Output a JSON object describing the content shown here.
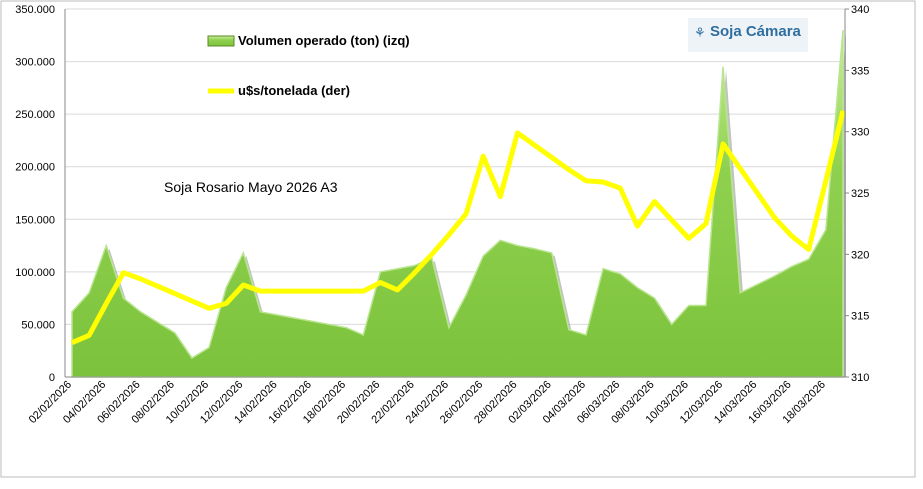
{
  "chart_data": {
    "type": "area_line",
    "annotation": "Soja Rosario Mayo 2026 A3",
    "logo": "Soja Cámara",
    "categories": [
      "02/02/2026",
      null,
      "04/02/2026",
      null,
      "06/02/2026",
      null,
      "08/02/2026",
      null,
      "10/02/2026",
      null,
      "12/02/2026",
      null,
      "14/02/2026",
      null,
      "16/02/2026",
      null,
      "18/02/2026",
      null,
      "20/02/2026",
      null,
      "22/02/2026",
      null,
      "24/02/2026",
      null,
      "26/02/2026",
      null,
      "28/02/2026",
      null,
      "02/03/2026",
      null,
      "04/03/2026",
      null,
      "06/03/2026",
      null,
      "08/03/2026",
      null,
      "10/03/2026",
      null,
      "12/03/2026",
      null,
      "14/03/2026",
      null,
      "16/03/2026",
      null,
      "18/03/2026",
      null
    ],
    "series": [
      {
        "name": "Volumen operado (ton) (izq)",
        "color": "#8fd14f",
        "axis": "y",
        "values": [
          62000,
          80000,
          125000,
          75000,
          62000,
          52000,
          42000,
          18000,
          28000,
          85000,
          118000,
          62000,
          59000,
          56000,
          53000,
          50000,
          47000,
          40000,
          100000,
          103000,
          106000,
          113000,
          47000,
          78000,
          115000,
          130000,
          125000,
          122000,
          118000,
          45000,
          40000,
          103000,
          98000,
          85000,
          75000,
          50000,
          68000,
          68000,
          295000,
          80000,
          88000,
          96000,
          105000,
          112000,
          140000,
          330000
        ]
      },
      {
        "name": "u$s/tonelada (der)",
        "color": "#ffff00",
        "axis": "y2",
        "values": [
          312.8,
          313.4,
          316,
          318.5,
          318,
          317.4,
          316.8,
          316.2,
          315.6,
          316,
          317.5,
          317,
          317,
          317,
          317,
          317,
          317,
          317,
          317.7,
          317.1,
          318.5,
          320,
          321.6,
          323.3,
          328,
          324.7,
          329.9,
          328.9,
          327.9,
          326.9,
          326,
          325.9,
          325.4,
          322.3,
          324.3,
          322.8,
          321.3,
          322.5,
          329,
          327,
          325,
          323,
          321.5,
          320.4,
          326,
          331.7
        ]
      }
    ],
    "ylim": [
      0,
      350000
    ],
    "yticks": [
      0,
      {
        "value": 50000,
        "label": "50.000"
      },
      {
        "value": 100000,
        "label": "100.000"
      },
      {
        "value": 150000,
        "label": "150.000"
      },
      {
        "value": 200000,
        "label": "200.000"
      },
      {
        "value": 250000,
        "label": "250.000"
      },
      {
        "value": 300000,
        "label": "300.000"
      },
      {
        "value": 350000,
        "label": "350.000"
      }
    ],
    "y2lim": [
      310,
      340
    ],
    "y2ticks": [
      310,
      315,
      320,
      325,
      330,
      335,
      340
    ],
    "grid": true
  }
}
